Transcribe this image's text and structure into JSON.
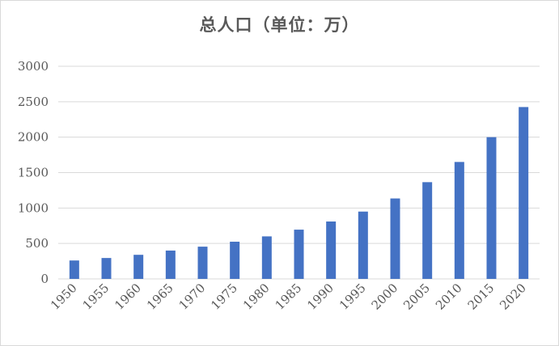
{
  "chart_data": {
    "type": "bar",
    "title": "总人口（单位：万）",
    "xlabel": "",
    "ylabel": "",
    "categories": [
      "1950",
      "1955",
      "1960",
      "1965",
      "1970",
      "1975",
      "1980",
      "1985",
      "1990",
      "1995",
      "2000",
      "2005",
      "2010",
      "2015",
      "2020"
    ],
    "series": [
      {
        "values": [
          260,
          295,
          340,
          400,
          455,
          525,
          600,
          695,
          810,
          950,
          1135,
          1365,
          1650,
          2000,
          2425
        ]
      }
    ],
    "ylim": [
      0,
      3000
    ],
    "yticks": [
      0,
      500,
      1000,
      1500,
      2000,
      2500,
      3000
    ],
    "grid": true,
    "legend": "none",
    "colors": {
      "bar": "#4472c4",
      "grid": "#d9d9d9",
      "text": "#595959"
    }
  }
}
